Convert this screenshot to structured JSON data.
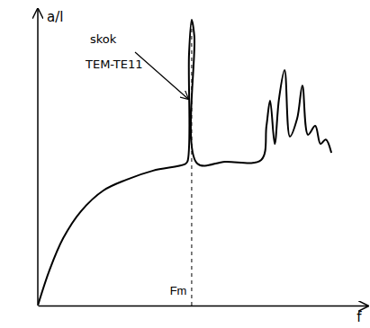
{
  "chart_data": {
    "type": "line",
    "xlabel": "f",
    "ylabel": "a/l",
    "annotations": [
      "skok",
      "TEM-TE11"
    ],
    "x": [
      0,
      0.36,
      0.77,
      1.31,
      1.99,
      2.68,
      3.5,
      4.45,
      4.54,
      4.59,
      4.67,
      4.75,
      4.84,
      5.68,
      6.78,
      6.94,
      7.05,
      7.19,
      7.32,
      7.49,
      7.65,
      7.87,
      8.03,
      8.2,
      8.42,
      8.58,
      8.74,
      8.91
    ],
    "values": [
      0,
      1.21,
      2.27,
      3.18,
      3.88,
      4.24,
      4.55,
      4.76,
      4.85,
      8.48,
      9.64,
      9.09,
      4.79,
      4.85,
      4.91,
      6.06,
      6.91,
      5.45,
      6.97,
      7.94,
      5.7,
      6.3,
      7.42,
      5.76,
      6.06,
      5.45,
      5.6,
      5.15
    ],
    "color": "#000000",
    "xlim": [
      0,
      10
    ],
    "ylim": [
      0,
      10
    ],
    "xticks": [
      {
        "value": 4.67,
        "label": "Fm"
      }
    ],
    "yticks": [],
    "tick_labels": "x",
    "grid": false
  }
}
